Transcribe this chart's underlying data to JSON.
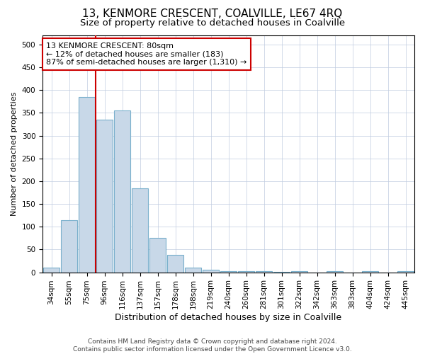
{
  "title": "13, KENMORE CRESCENT, COALVILLE, LE67 4RQ",
  "subtitle": "Size of property relative to detached houses in Coalville",
  "xlabel": "Distribution of detached houses by size in Coalville",
  "ylabel": "Number of detached properties",
  "bar_labels": [
    "34sqm",
    "55sqm",
    "75sqm",
    "96sqm",
    "116sqm",
    "137sqm",
    "157sqm",
    "178sqm",
    "198sqm",
    "219sqm",
    "240sqm",
    "260sqm",
    "281sqm",
    "301sqm",
    "322sqm",
    "342sqm",
    "363sqm",
    "383sqm",
    "404sqm",
    "424sqm",
    "445sqm"
  ],
  "bar_values": [
    10,
    115,
    385,
    335,
    355,
    185,
    75,
    38,
    10,
    6,
    2,
    2,
    2,
    1,
    2,
    0,
    2,
    0,
    3,
    0,
    2
  ],
  "bar_color": "#c8d8e8",
  "bar_edge_color": "#7ab0cc",
  "vline_x_index": 2,
  "vline_color": "#cc0000",
  "annotation_text": "13 KENMORE CRESCENT: 80sqm\n← 12% of detached houses are smaller (183)\n87% of semi-detached houses are larger (1,310) →",
  "annotation_box_color": "#ffffff",
  "annotation_box_edge_color": "#cc0000",
  "ylim": [
    0,
    520
  ],
  "yticks": [
    0,
    50,
    100,
    150,
    200,
    250,
    300,
    350,
    400,
    450,
    500
  ],
  "background_color": "#ffffff",
  "grid_color": "#c0cce0",
  "footer_line1": "Contains HM Land Registry data © Crown copyright and database right 2024.",
  "footer_line2": "Contains public sector information licensed under the Open Government Licence v3.0.",
  "title_fontsize": 11,
  "subtitle_fontsize": 9.5,
  "xlabel_fontsize": 9,
  "ylabel_fontsize": 8,
  "tick_fontsize": 7.5,
  "annotation_fontsize": 8,
  "footer_fontsize": 6.5
}
